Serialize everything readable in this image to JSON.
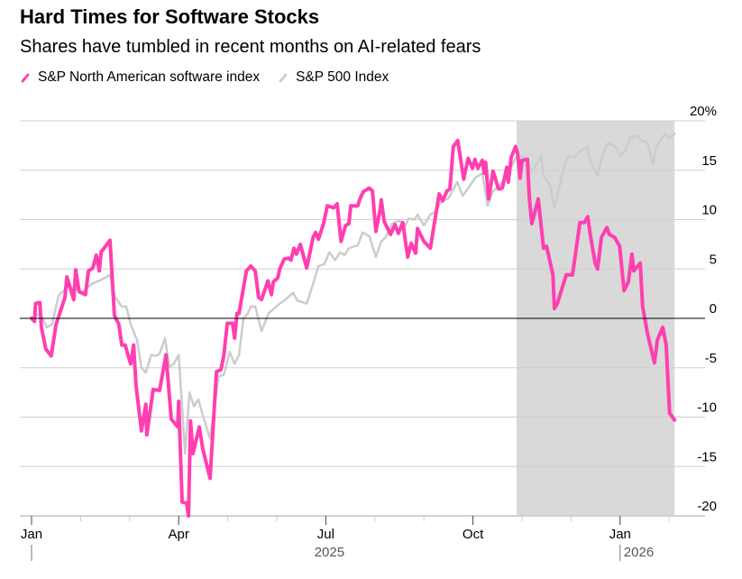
{
  "chart_data": {
    "type": "line",
    "title": "Hard Times for Software Stocks",
    "subtitle": "Shares have tumbled in recent months on AI-related fears",
    "x_unit": "months since Jan 1, 2025",
    "xlim": [
      0,
      13.11
    ],
    "ylim": [
      -20,
      20
    ],
    "y_ticks": [
      20,
      15,
      10,
      5,
      0,
      -5,
      -10,
      -15,
      -20
    ],
    "y_tick_labels": [
      "20%",
      "15",
      "10",
      "5",
      "0",
      "-5",
      "-10",
      "-15",
      "-20"
    ],
    "x_ticks": [
      {
        "x": 0,
        "label": "Jan"
      },
      {
        "x": 3,
        "label": "Apr"
      },
      {
        "x": 6,
        "label": "Jul"
      },
      {
        "x": 9,
        "label": "Oct"
      },
      {
        "x": 12,
        "label": "Jan"
      }
    ],
    "year_labels": [
      {
        "x": 6,
        "label": "2025"
      },
      {
        "x": 12,
        "label": "2026"
      }
    ],
    "shaded_range": [
      9.89,
      13.11
    ],
    "grid": true,
    "legend_placement": "top-left",
    "series": [
      {
        "name": "S&P North American software index",
        "color": "#ff3fb0",
        "points": [
          [
            0,
            0
          ],
          [
            0.06,
            -0.3
          ],
          [
            0.08,
            1.5
          ],
          [
            0.17,
            1.6
          ],
          [
            0.2,
            -0.9
          ],
          [
            0.29,
            -3.1
          ],
          [
            0.4,
            -3.8
          ],
          [
            0.5,
            -0.6
          ],
          [
            0.68,
            2.1
          ],
          [
            0.72,
            4.2
          ],
          [
            0.86,
            1.9
          ],
          [
            0.9,
            4.9
          ],
          [
            0.97,
            2.7
          ],
          [
            1.1,
            2.4
          ],
          [
            1.16,
            4.8
          ],
          [
            1.25,
            5.1
          ],
          [
            1.32,
            6.4
          ],
          [
            1.38,
            4.8
          ],
          [
            1.42,
            6.7
          ],
          [
            1.6,
            7.9
          ],
          [
            1.69,
            0.3
          ],
          [
            1.78,
            -0.6
          ],
          [
            1.84,
            -2.7
          ],
          [
            1.91,
            -2.7
          ],
          [
            1.97,
            -3.8
          ],
          [
            2.02,
            -4.6
          ],
          [
            2.08,
            -2.7
          ],
          [
            2.13,
            -6.8
          ],
          [
            2.24,
            -11.4
          ],
          [
            2.33,
            -8.7
          ],
          [
            2.35,
            -11.8
          ],
          [
            2.48,
            -7.2
          ],
          [
            2.61,
            -7.3
          ],
          [
            2.74,
            -3.7
          ],
          [
            2.85,
            -10.2
          ],
          [
            2.98,
            -11.0
          ],
          [
            3.0,
            -8.4
          ],
          [
            3.07,
            -18.6
          ],
          [
            3.16,
            -18.7
          ],
          [
            3.2,
            -20.0
          ],
          [
            3.24,
            -10.4
          ],
          [
            3.29,
            -13.7
          ],
          [
            3.42,
            -11.0
          ],
          [
            3.49,
            -13.2
          ],
          [
            3.64,
            -16.2
          ],
          [
            3.77,
            -5.4
          ],
          [
            3.86,
            -5.2
          ],
          [
            3.92,
            -3.8
          ],
          [
            3.99,
            -0.5
          ],
          [
            4.1,
            -0.5
          ],
          [
            4.14,
            -2.0
          ],
          [
            4.19,
            0.5
          ],
          [
            4.23,
            0.5
          ],
          [
            4.38,
            4.8
          ],
          [
            4.47,
            5.3
          ],
          [
            4.56,
            4.8
          ],
          [
            4.63,
            2.1
          ],
          [
            4.69,
            1.9
          ],
          [
            4.82,
            3.8
          ],
          [
            4.89,
            2.4
          ],
          [
            4.93,
            3.7
          ],
          [
            5.02,
            4.1
          ],
          [
            5.06,
            5.0
          ],
          [
            5.15,
            6.0
          ],
          [
            5.24,
            6.1
          ],
          [
            5.29,
            5.9
          ],
          [
            5.35,
            7.1
          ],
          [
            5.4,
            6.5
          ],
          [
            5.48,
            7.5
          ],
          [
            5.61,
            5.1
          ],
          [
            5.74,
            8.2
          ],
          [
            5.79,
            8.7
          ],
          [
            5.85,
            8.0
          ],
          [
            5.96,
            9.7
          ],
          [
            6.03,
            11.4
          ],
          [
            6.16,
            11.2
          ],
          [
            6.23,
            11.6
          ],
          [
            6.31,
            7.8
          ],
          [
            6.4,
            9.4
          ],
          [
            6.47,
            9.6
          ],
          [
            6.51,
            11.4
          ],
          [
            6.65,
            11.4
          ],
          [
            6.69,
            12.0
          ],
          [
            6.76,
            12.8
          ],
          [
            6.88,
            13.2
          ],
          [
            6.95,
            12.9
          ],
          [
            7.02,
            8.8
          ],
          [
            7.11,
            11.1
          ],
          [
            7.13,
            12.0
          ],
          [
            7.19,
            9.8
          ],
          [
            7.32,
            8.5
          ],
          [
            7.41,
            9.5
          ],
          [
            7.48,
            8.6
          ],
          [
            7.57,
            9.7
          ],
          [
            7.67,
            6.2
          ],
          [
            7.74,
            7.6
          ],
          [
            7.83,
            6.6
          ],
          [
            7.87,
            9.1
          ],
          [
            8.0,
            7.8
          ],
          [
            8.13,
            7.1
          ],
          [
            8.31,
            12.6
          ],
          [
            8.38,
            11.9
          ],
          [
            8.47,
            12.9
          ],
          [
            8.53,
            13.1
          ],
          [
            8.6,
            17.4
          ],
          [
            8.69,
            18.0
          ],
          [
            8.81,
            14.1
          ],
          [
            8.9,
            16.2
          ],
          [
            8.99,
            15.2
          ],
          [
            9.04,
            16.1
          ],
          [
            9.1,
            15.2
          ],
          [
            9.19,
            16.0
          ],
          [
            9.23,
            14.7
          ],
          [
            9.26,
            15.8
          ],
          [
            9.32,
            12.1
          ],
          [
            9.41,
            14.9
          ],
          [
            9.52,
            13.1
          ],
          [
            9.6,
            13.2
          ],
          [
            9.69,
            15.3
          ],
          [
            9.72,
            13.8
          ],
          [
            9.78,
            16.3
          ],
          [
            9.87,
            17.4
          ],
          [
            9.91,
            16.7
          ],
          [
            9.96,
            14.2
          ],
          [
            10.0,
            16.0
          ],
          [
            10.11,
            16.1
          ],
          [
            10.15,
            12.1
          ],
          [
            10.2,
            9.6
          ],
          [
            10.33,
            12.1
          ],
          [
            10.44,
            7.1
          ],
          [
            10.5,
            7.3
          ],
          [
            10.63,
            4.4
          ],
          [
            10.66,
            1.0
          ],
          [
            10.72,
            1.5
          ],
          [
            10.83,
            3.3
          ],
          [
            10.9,
            4.4
          ],
          [
            11.03,
            4.4
          ],
          [
            11.18,
            9.7
          ],
          [
            11.27,
            9.7
          ],
          [
            11.34,
            10.3
          ],
          [
            11.4,
            8.2
          ],
          [
            11.49,
            5.6
          ],
          [
            11.54,
            5.0
          ],
          [
            11.62,
            8.2
          ],
          [
            11.73,
            9.2
          ],
          [
            11.78,
            8.5
          ],
          [
            11.89,
            8.2
          ],
          [
            11.99,
            7.3
          ],
          [
            12.08,
            2.8
          ],
          [
            12.17,
            3.7
          ],
          [
            12.24,
            6.5
          ],
          [
            12.28,
            4.8
          ],
          [
            12.41,
            5.6
          ],
          [
            12.46,
            1.2
          ],
          [
            12.56,
            -1.6
          ],
          [
            12.7,
            -4.5
          ],
          [
            12.76,
            -2.2
          ],
          [
            12.87,
            -0.9
          ],
          [
            12.94,
            -2.7
          ],
          [
            13.01,
            -9.6
          ],
          [
            13.11,
            -10.3
          ]
        ]
      },
      {
        "name": "S&P 500 Index",
        "color": "#cccccc",
        "points": [
          [
            0,
            0
          ],
          [
            0.18,
            0.5
          ],
          [
            0.31,
            -0.9
          ],
          [
            0.42,
            -0.6
          ],
          [
            0.5,
            1.2
          ],
          [
            0.55,
            2.3
          ],
          [
            0.74,
            3.2
          ],
          [
            1.05,
            2.7
          ],
          [
            1.23,
            3.5
          ],
          [
            1.42,
            3.9
          ],
          [
            1.6,
            4.4
          ],
          [
            1.71,
            2.1
          ],
          [
            1.84,
            1.2
          ],
          [
            1.93,
            1.2
          ],
          [
            2.02,
            -0.6
          ],
          [
            2.15,
            -2.2
          ],
          [
            2.24,
            -5.0
          ],
          [
            2.33,
            -5.5
          ],
          [
            2.44,
            -3.7
          ],
          [
            2.54,
            -3.8
          ],
          [
            2.61,
            -3.6
          ],
          [
            2.72,
            -2.0
          ],
          [
            2.81,
            -4.9
          ],
          [
            2.9,
            -4.6
          ],
          [
            3.0,
            -3.7
          ],
          [
            3.13,
            -13.7
          ],
          [
            3.22,
            -7.5
          ],
          [
            3.31,
            -8.9
          ],
          [
            3.4,
            -8.2
          ],
          [
            3.49,
            -9.8
          ],
          [
            3.64,
            -12.2
          ],
          [
            3.81,
            -5.9
          ],
          [
            3.92,
            -5.7
          ],
          [
            4.04,
            -3.4
          ],
          [
            4.14,
            -4.6
          ],
          [
            4.23,
            -3.7
          ],
          [
            4.32,
            0
          ],
          [
            4.41,
            0.5
          ],
          [
            4.47,
            1.2
          ],
          [
            4.56,
            1.2
          ],
          [
            4.69,
            -1.3
          ],
          [
            4.83,
            0.5
          ],
          [
            5.06,
            1.5
          ],
          [
            5.18,
            1.9
          ],
          [
            5.33,
            2.6
          ],
          [
            5.42,
            1.8
          ],
          [
            5.61,
            1.5
          ],
          [
            5.74,
            3.5
          ],
          [
            5.85,
            5.3
          ],
          [
            5.97,
            5.5
          ],
          [
            6.07,
            6.7
          ],
          [
            6.19,
            5.9
          ],
          [
            6.29,
            6.7
          ],
          [
            6.38,
            6.4
          ],
          [
            6.47,
            7.1
          ],
          [
            6.65,
            7.4
          ],
          [
            6.75,
            8.7
          ],
          [
            6.89,
            8.3
          ],
          [
            7.02,
            6.2
          ],
          [
            7.13,
            7.8
          ],
          [
            7.22,
            8.2
          ],
          [
            7.35,
            9.6
          ],
          [
            7.5,
            9.9
          ],
          [
            7.63,
            9.4
          ],
          [
            7.68,
            10.1
          ],
          [
            7.81,
            10.0
          ],
          [
            7.87,
            10.5
          ],
          [
            8.0,
            9.4
          ],
          [
            8.13,
            10.5
          ],
          [
            8.24,
            10.8
          ],
          [
            8.36,
            11.9
          ],
          [
            8.49,
            12.1
          ],
          [
            8.68,
            13.8
          ],
          [
            8.79,
            12.4
          ],
          [
            8.92,
            13.3
          ],
          [
            9.04,
            14.2
          ],
          [
            9.19,
            14.7
          ],
          [
            9.3,
            11.4
          ],
          [
            9.41,
            12.9
          ],
          [
            9.52,
            13.3
          ],
          [
            9.71,
            14.6
          ],
          [
            9.89,
            16.4
          ],
          [
            10.07,
            16.4
          ],
          [
            10.2,
            14.9
          ],
          [
            10.33,
            15.8
          ],
          [
            10.39,
            16.4
          ],
          [
            10.44,
            14.4
          ],
          [
            10.57,
            13.5
          ],
          [
            10.66,
            11.2
          ],
          [
            10.75,
            13.1
          ],
          [
            10.88,
            15.8
          ],
          [
            10.97,
            16.5
          ],
          [
            11.07,
            16.3
          ],
          [
            11.18,
            16.9
          ],
          [
            11.34,
            17.4
          ],
          [
            11.36,
            16.3
          ],
          [
            11.54,
            14.4
          ],
          [
            11.64,
            16.5
          ],
          [
            11.76,
            17.8
          ],
          [
            11.91,
            17.4
          ],
          [
            12.0,
            16.4
          ],
          [
            12.1,
            17.0
          ],
          [
            12.22,
            18.3
          ],
          [
            12.35,
            18.5
          ],
          [
            12.46,
            17.9
          ],
          [
            12.56,
            17.8
          ],
          [
            12.67,
            15.6
          ],
          [
            12.74,
            17.4
          ],
          [
            12.83,
            18.1
          ],
          [
            12.92,
            18.7
          ],
          [
            13.0,
            18.3
          ],
          [
            13.11,
            18.7
          ]
        ]
      }
    ]
  },
  "legend": {
    "software_label": "S&P North American software index",
    "sp500_label": "S&P 500 Index"
  }
}
